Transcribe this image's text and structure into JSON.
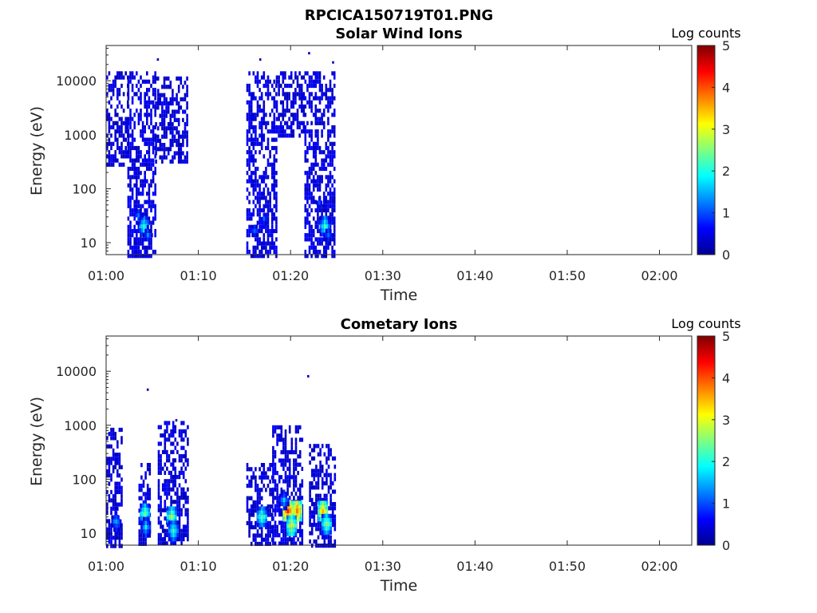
{
  "figure_title": "RPCICA150719T01.PNG",
  "chart_data": [
    {
      "type": "heatmap",
      "title": "Solar Wind Ions",
      "xlabel": "Time",
      "ylabel": "Energy (eV)",
      "x_ticks": [
        "01:00",
        "01:10",
        "01:20",
        "01:30",
        "01:40",
        "01:50",
        "02:00"
      ],
      "x_tick_minutes": [
        0,
        10,
        20,
        30,
        40,
        50,
        60
      ],
      "xlim_minutes": [
        0,
        63.5
      ],
      "y_ticks": [
        "10",
        "100",
        "1000",
        "10000"
      ],
      "y_tick_values": [
        10,
        100,
        1000,
        10000
      ],
      "ylim": [
        6,
        45000
      ],
      "y_scale": "log",
      "colorbar": {
        "label": "Log counts",
        "ticks": [
          "0",
          "1",
          "2",
          "3",
          "4",
          "5"
        ],
        "range": [
          0,
          5
        ],
        "colormap": "jet"
      },
      "blocks": [
        {
          "t_start": 0.0,
          "t_end": 2.3,
          "e_min": 300,
          "e_max": 15000,
          "log_counts": 0.25
        },
        {
          "t_start": 2.3,
          "t_end": 5.3,
          "e_min": 6,
          "e_max": 15000,
          "log_counts": 0.3
        },
        {
          "t_start": 5.3,
          "t_end": 8.8,
          "e_min": 300,
          "e_max": 12000,
          "log_counts": 0.25
        },
        {
          "t_start": 15.2,
          "t_end": 18.4,
          "e_min": 6,
          "e_max": 15000,
          "log_counts": 0.3
        },
        {
          "t_start": 18.4,
          "t_end": 21.5,
          "e_min": 1000,
          "e_max": 15000,
          "log_counts": 0.25
        },
        {
          "t_start": 21.5,
          "t_end": 24.7,
          "e_min": 6,
          "e_max": 15000,
          "log_counts": 0.3
        }
      ],
      "peaks": [
        {
          "t": 4.0,
          "e": 22,
          "log_counts": 2.2
        },
        {
          "t": 3.4,
          "e": 35,
          "log_counts": 1.2
        },
        {
          "t": 4.4,
          "e": 15,
          "log_counts": 1.3
        },
        {
          "t": 16.0,
          "e": 18,
          "log_counts": 1.2
        },
        {
          "t": 17.0,
          "e": 30,
          "log_counts": 1.1
        },
        {
          "t": 23.6,
          "e": 22,
          "log_counts": 2.2
        },
        {
          "t": 23.0,
          "e": 60,
          "log_counts": 1.0
        },
        {
          "t": 24.0,
          "e": 15,
          "log_counts": 1.3
        }
      ],
      "outliers": [
        {
          "t": 5.5,
          "e": 26000
        },
        {
          "t": 16.6,
          "e": 26000
        },
        {
          "t": 21.9,
          "e": 34000
        },
        {
          "t": 24.5,
          "e": 23000
        }
      ]
    },
    {
      "type": "heatmap",
      "title": "Cometary Ions",
      "xlabel": "Time",
      "ylabel": "Energy (eV)",
      "x_ticks": [
        "01:00",
        "01:10",
        "01:20",
        "01:30",
        "01:40",
        "01:50",
        "02:00"
      ],
      "x_tick_minutes": [
        0,
        10,
        20,
        30,
        40,
        50,
        60
      ],
      "xlim_minutes": [
        0,
        63.5
      ],
      "y_ticks": [
        "10",
        "100",
        "1000",
        "10000"
      ],
      "y_tick_values": [
        10,
        100,
        1000,
        10000
      ],
      "ylim": [
        6,
        45000
      ],
      "y_scale": "log",
      "colorbar": {
        "label": "Log counts",
        "ticks": [
          "0",
          "1",
          "2",
          "3",
          "4",
          "5"
        ],
        "range": [
          0,
          5
        ],
        "colormap": "jet"
      },
      "blocks": [
        {
          "t_start": 0.0,
          "t_end": 1.7,
          "e_min": 6,
          "e_max": 900,
          "log_counts": 0.25
        },
        {
          "t_start": 3.5,
          "t_end": 4.8,
          "e_min": 6,
          "e_max": 200,
          "log_counts": 0.3
        },
        {
          "t_start": 5.6,
          "t_end": 8.8,
          "e_min": 6,
          "e_max": 1200,
          "log_counts": 0.25
        },
        {
          "t_start": 15.2,
          "t_end": 18.0,
          "e_min": 6,
          "e_max": 200,
          "log_counts": 0.25
        },
        {
          "t_start": 18.0,
          "t_end": 21.3,
          "e_min": 6,
          "e_max": 1000,
          "log_counts": 0.3
        },
        {
          "t_start": 22.0,
          "t_end": 24.8,
          "e_min": 6,
          "e_max": 450,
          "log_counts": 0.25
        }
      ],
      "peaks": [
        {
          "t": 1.0,
          "e": 18,
          "log_counts": 1.6
        },
        {
          "t": 4.1,
          "e": 25,
          "log_counts": 2.5
        },
        {
          "t": 4.2,
          "e": 14,
          "log_counts": 1.8
        },
        {
          "t": 7.0,
          "e": 22,
          "log_counts": 2.7
        },
        {
          "t": 7.2,
          "e": 12,
          "log_counts": 2.2
        },
        {
          "t": 16.8,
          "e": 22,
          "log_counts": 2.4
        },
        {
          "t": 19.6,
          "e": 28,
          "log_counts": 4.1
        },
        {
          "t": 20.6,
          "e": 28,
          "log_counts": 3.8
        },
        {
          "t": 20.0,
          "e": 15,
          "log_counts": 3.0
        },
        {
          "t": 19.2,
          "e": 45,
          "log_counts": 1.6
        },
        {
          "t": 23.4,
          "e": 28,
          "log_counts": 3.4
        },
        {
          "t": 23.8,
          "e": 16,
          "log_counts": 2.6
        }
      ],
      "outliers": [
        {
          "t": 4.4,
          "e": 4800
        },
        {
          "t": 21.8,
          "e": 8500
        },
        {
          "t": 7.5,
          "e": 1300
        }
      ]
    }
  ]
}
